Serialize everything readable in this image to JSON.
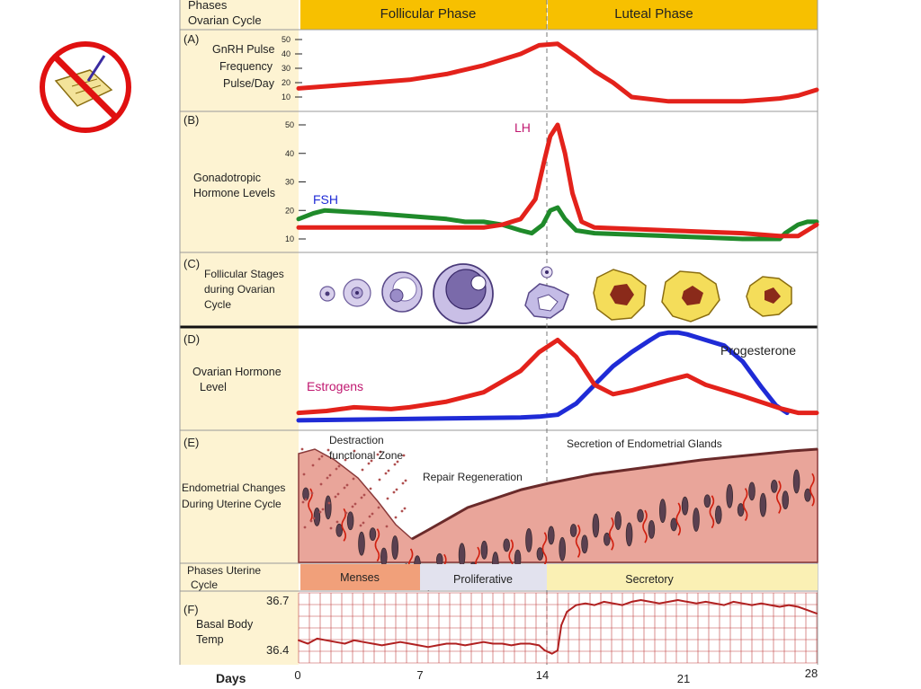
{
  "icon": {
    "name": "no-notes-icon"
  },
  "colors": {
    "phase_bar": "#f7c000",
    "label_column": "#fdf3d2",
    "red_curve": "#e3221b",
    "blue_curve": "#1f2bd6",
    "green_curve": "#1f8a2a",
    "lh_label": "#c01870",
    "fsh_label": "#1f2bd6",
    "estrogens_label": "#c01870",
    "endometrium": "#e9a59a",
    "menses": "#f1a07a",
    "proliferative": "#e2e2ee",
    "secretory": "#faf0b4",
    "temp_grid": "#b02020"
  },
  "header": {
    "phases_label_line1": "Phases",
    "phases_label_line2": "Ovarian Cycle",
    "follicular": "Follicular Phase",
    "luteal": "Luteal Phase"
  },
  "panels": {
    "a": {
      "letter": "(A)",
      "label_lines": [
        "GnRH Pulse",
        "Frequency",
        "Pulse/Day"
      ],
      "ticks": [
        "50",
        "40",
        "30",
        "20",
        "10"
      ]
    },
    "b": {
      "letter": "(B)",
      "label_lines": [
        "Gonadotropic",
        "Hormone Levels"
      ],
      "ticks": [
        "50",
        "40",
        "30",
        "20",
        "10"
      ],
      "lh_label": "LH",
      "fsh_label": "FSH"
    },
    "c": {
      "letter": "(C)",
      "label_lines": [
        "Follicular Stages",
        "during Ovarian",
        "Cycle"
      ]
    },
    "d": {
      "letter": "(D)",
      "label_lines": [
        "Ovarian Hormone",
        "Level"
      ],
      "estrogens_label": "Estrogens",
      "progesterone_label": "Progesterone"
    },
    "e": {
      "letter": "(E)",
      "label_lines": [
        "Endometrial Changes",
        "During Uterine Cycle"
      ],
      "annotation_destruction_1": "Destraction",
      "annotation_destruction_2": "functional Zone",
      "annotation_repair": "Repair Regeneration",
      "annotation_secretion": "Secretion of Endometrial Glands"
    },
    "uterine": {
      "label_line1": "Phases Uterine",
      "label_line2": "Cycle",
      "menses": "Menses",
      "proliferative": "Proliferative",
      "secretory": "Secretory"
    },
    "f": {
      "letter": "(F)",
      "label_lines": [
        "Basal Body",
        "Temp"
      ],
      "tick_high": "36.7",
      "tick_low": "36.4"
    }
  },
  "days": {
    "label": "Days",
    "ticks": [
      "0",
      "7",
      "14",
      "21",
      "28"
    ]
  },
  "chart_data": [
    {
      "type": "line",
      "panel": "A",
      "ylabel": "GnRH Pulse Frequency Pulse/Day",
      "yticks": [
        10,
        20,
        30,
        40,
        50
      ],
      "ylim": [
        10,
        50
      ],
      "xlim": [
        0,
        28
      ],
      "series": [
        {
          "color": "#e3221b",
          "x": [
            0,
            2,
            4,
            6,
            8,
            10,
            12,
            13,
            14,
            15,
            16,
            17,
            18,
            20,
            22,
            24,
            25,
            26,
            27,
            28
          ],
          "y": [
            16,
            18,
            20,
            22,
            26,
            32,
            40,
            46,
            47,
            38,
            28,
            20,
            10,
            7,
            7,
            7,
            8,
            9,
            11,
            15
          ]
        }
      ]
    },
    {
      "type": "line",
      "panel": "B",
      "ylabel": "Gonadotropic Hormone Levels",
      "yticks": [
        10,
        20,
        30,
        40,
        50
      ],
      "ylim": [
        10,
        50
      ],
      "xlim": [
        0,
        28
      ],
      "series": [
        {
          "name": "LH",
          "color": "#e3221b",
          "x": [
            0,
            4,
            8,
            10,
            11,
            12,
            12.8,
            13.3,
            13.6,
            14,
            14.4,
            14.8,
            15.3,
            16,
            20,
            24,
            26,
            27,
            28
          ],
          "y": [
            14,
            14,
            14,
            14,
            15,
            17,
            24,
            38,
            46,
            50,
            40,
            26,
            16,
            14,
            13,
            12,
            11,
            11,
            15
          ]
        },
        {
          "name": "FSH",
          "color": "#1f8a2a",
          "x": [
            0,
            0.8,
            1.4,
            4,
            8,
            9,
            10,
            11,
            12,
            12.6,
            13.2,
            13.6,
            14,
            14.4,
            15,
            16,
            20,
            24,
            26,
            26.3,
            27,
            27.5,
            28
          ],
          "y": [
            17,
            19,
            20,
            19,
            17,
            16,
            16,
            15,
            13,
            12,
            15,
            20,
            21,
            17,
            13,
            12,
            11,
            10,
            10,
            12,
            15,
            16,
            16
          ]
        }
      ]
    },
    {
      "type": "line",
      "panel": "D",
      "ylabel": "Ovarian Hormone Level",
      "xlim": [
        0,
        28
      ],
      "series": [
        {
          "name": "Estrogens",
          "color": "#e3221b",
          "x": [
            0,
            1.5,
            3,
            4,
            5,
            6,
            8,
            10,
            12,
            13,
            14,
            15,
            16,
            17,
            18,
            20,
            21,
            22,
            24,
            26,
            27,
            28
          ],
          "y": [
            10,
            12,
            16,
            15,
            14,
            16,
            22,
            32,
            55,
            75,
            88,
            70,
            40,
            30,
            34,
            45,
            50,
            40,
            28,
            15,
            10,
            10
          ]
        },
        {
          "name": "Progesterone",
          "color": "#1f2bd6",
          "x": [
            0,
            4,
            8,
            12,
            13,
            14,
            15,
            16,
            17,
            18,
            19,
            19.5,
            20,
            20.5,
            21,
            22,
            23,
            24,
            25,
            25.8,
            26.4
          ],
          "y": [
            2,
            3,
            4,
            5,
            6,
            8,
            20,
            40,
            60,
            75,
            88,
            94,
            96,
            96,
            94,
            88,
            82,
            65,
            38,
            18,
            10
          ]
        }
      ]
    },
    {
      "type": "line",
      "panel": "F",
      "ylabel": "Basal Body Temp",
      "yticks": [
        36.4,
        36.7
      ],
      "ylim": [
        36.35,
        36.72
      ],
      "xlim": [
        0,
        28
      ],
      "series": [
        {
          "color": "#b02020",
          "x": [
            0,
            0.5,
            1,
            1.5,
            2,
            2.5,
            3,
            3.5,
            4,
            4.5,
            5,
            5.5,
            6,
            6.5,
            7,
            7.5,
            8,
            8.5,
            9,
            9.5,
            10,
            10.5,
            11,
            11.5,
            12,
            12.5,
            13,
            13.3,
            13.7,
            14,
            14.2,
            14.5,
            15,
            15.5,
            16,
            16.5,
            17,
            17.5,
            18,
            18.5,
            19,
            19.5,
            20,
            20.5,
            21,
            21.5,
            22,
            22.5,
            23,
            23.5,
            24,
            24.5,
            25,
            25.5,
            26,
            26.5,
            27,
            27.5,
            28
          ],
          "y": [
            36.46,
            36.44,
            36.47,
            36.46,
            36.45,
            36.44,
            36.46,
            36.45,
            36.44,
            36.43,
            36.44,
            36.45,
            36.44,
            36.43,
            36.42,
            36.43,
            36.44,
            36.44,
            36.43,
            36.44,
            36.45,
            36.44,
            36.44,
            36.43,
            36.44,
            36.44,
            36.43,
            36.4,
            36.38,
            36.4,
            36.55,
            36.63,
            36.67,
            36.68,
            36.67,
            36.69,
            36.68,
            36.67,
            36.69,
            36.7,
            36.69,
            36.68,
            36.69,
            36.7,
            36.69,
            36.68,
            36.69,
            36.68,
            36.67,
            36.69,
            36.68,
            36.67,
            36.68,
            36.67,
            36.66,
            36.67,
            36.66,
            36.64,
            36.62
          ]
        }
      ]
    }
  ]
}
